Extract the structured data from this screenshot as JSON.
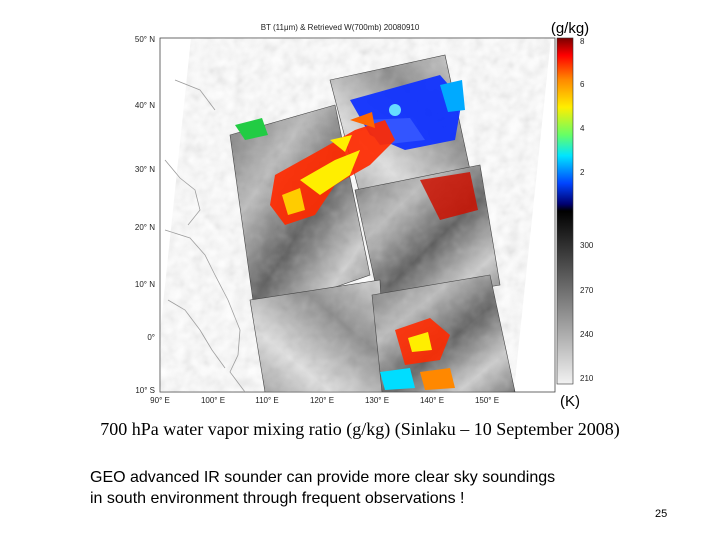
{
  "figure": {
    "title": "BT (11μm) & Retrieved W(700mb) 20080910",
    "lat_labels": [
      "50° N",
      "40° N",
      "30° N",
      "20° N",
      "10° N",
      "0°",
      "10° S"
    ],
    "lon_labels": [
      "90° E",
      "100° E",
      "110° E",
      "120° E",
      "130° E",
      "140° E",
      "150° E"
    ],
    "colorbar": {
      "unit_top": "(g/kg)",
      "unit_bottom": "(K)",
      "ticks_wv": [
        "8",
        "6",
        "4",
        "2"
      ],
      "ticks_bt": [
        "300",
        "270",
        "240",
        "210"
      ]
    },
    "colors": {
      "moist_high": "#ff2a00",
      "moist_mid": "#ffee00",
      "dry": "#1133ff",
      "coast": "#888888"
    }
  },
  "caption": "700 hPa water vapor mixing ratio (g/kg) (Sinlaku – 10 September 2008)",
  "note_lines": [
    "GEO advanced IR sounder can provide more clear sky soundings",
    "in south environment through frequent observations !"
  ],
  "page_number": "25"
}
